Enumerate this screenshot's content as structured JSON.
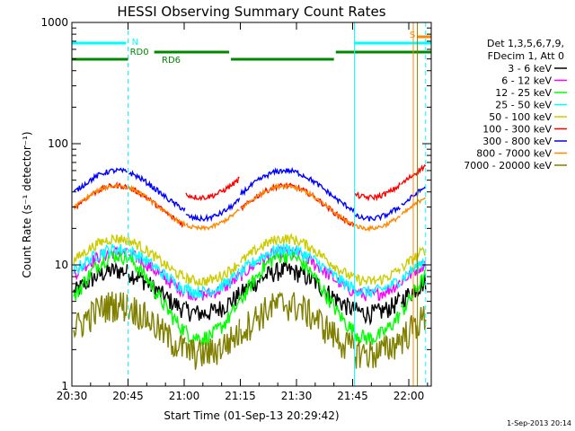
{
  "chart_data": {
    "type": "line",
    "title": "HESSI Observing Summary Count Rates",
    "xlabel": "Start Time (01-Sep-13 20:29:42)",
    "ylabel": "Count Rate (s⁻¹ detector⁻¹)",
    "x_range_minutes": [
      0,
      96
    ],
    "x_ticks": [
      {
        "label": "20:30",
        "min": 0
      },
      {
        "label": "20:45",
        "min": 15
      },
      {
        "label": "21:00",
        "min": 30
      },
      {
        "label": "21:15",
        "min": 45
      },
      {
        "label": "21:30",
        "min": 60
      },
      {
        "label": "21:45",
        "min": 75
      },
      {
        "label": "22:00",
        "min": 90
      }
    ],
    "y_scale": "log",
    "y_range": [
      1,
      1000
    ],
    "y_ticks": [
      {
        "label": "1",
        "v": 1
      },
      {
        "label": "10",
        "v": 10
      },
      {
        "label": "100",
        "v": 100
      },
      {
        "label": "1000",
        "v": 1000
      }
    ],
    "legend_header": [
      "Det 1,3,5,6,7,9,",
      "FDecim 1, Att 0"
    ],
    "legend_position": "right",
    "series": [
      {
        "name": "3 - 6 keV",
        "color": "#000000",
        "base": 6,
        "amp": 1.5,
        "noise": 0.18,
        "jump": 1
      },
      {
        "name": "6 - 12 keV",
        "color": "#ff00ff",
        "base": 8.5,
        "amp": 1.5,
        "noise": 0.12,
        "jump": 1
      },
      {
        "name": "12 - 25 keV",
        "color": "#00ff00",
        "base": 5.5,
        "amp": 2.2,
        "noise": 0.15,
        "jump": 1
      },
      {
        "name": "25 - 50 keV",
        "color": "#00ffff",
        "base": 9,
        "amp": 1.5,
        "noise": 0.12,
        "jump": 1
      },
      {
        "name": "50 - 100 keV",
        "color": "#cccc00",
        "base": 11,
        "amp": 1.5,
        "noise": 0.1,
        "jump": 1
      },
      {
        "name": "100 - 300 keV",
        "color": "#ff0000",
        "base": 30,
        "amp": 1.5,
        "noise": 0.05,
        "jump": 1.8
      },
      {
        "name": "300 - 800 keV",
        "color": "#0000ff",
        "base": 40,
        "amp": 1.5,
        "noise": 0.05,
        "jump": 0.9
      },
      {
        "name": "800 - 7000 keV",
        "color": "#ff8800",
        "base": 30,
        "amp": 1.5,
        "noise": 0.04,
        "jump": 1
      },
      {
        "name": "7000 - 20000 keV",
        "color": "#808000",
        "base": 3,
        "amp": 1.6,
        "noise": 0.3,
        "jump": 1
      }
    ],
    "gaps": [
      {
        "from": -1,
        "to": 0
      },
      {
        "from": 96,
        "to": 100
      }
    ],
    "annotations": {
      "N": {
        "label": "N",
        "color": "#00ffff"
      },
      "RD0": {
        "label": "RD0",
        "color": "#008800"
      },
      "RD6": {
        "label": "RD6",
        "color": "#008800"
      },
      "S": {
        "label": "S",
        "color": "#ff8800"
      }
    },
    "timestamp": "1-Sep-2013 20:14"
  }
}
